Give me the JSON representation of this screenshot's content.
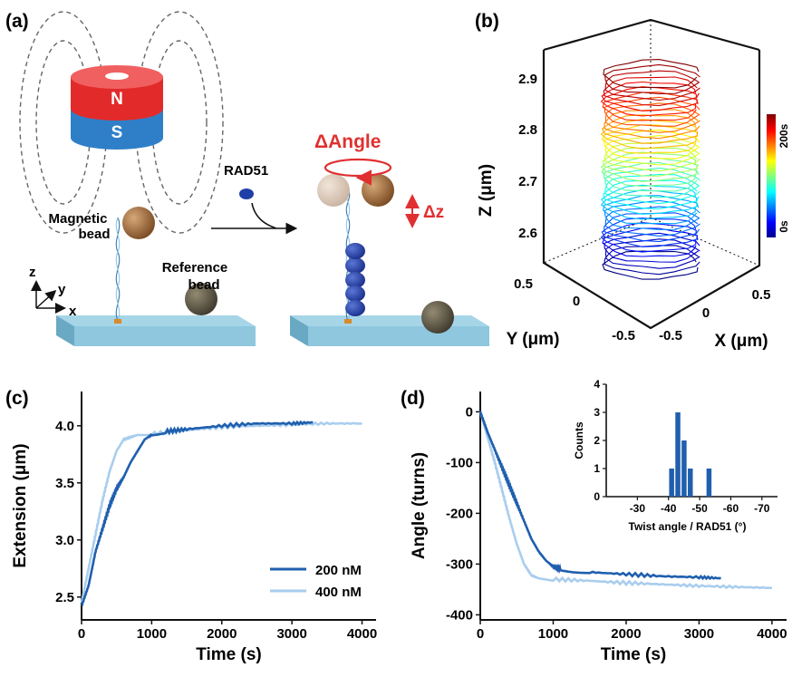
{
  "panels": {
    "a": {
      "label": "(a)",
      "magnet": {
        "north": "N",
        "south": "S"
      },
      "protein": "RAD51",
      "magnetic_bead": [
        "Magnetic",
        "bead"
      ],
      "reference_bead": [
        "Reference",
        "bead"
      ],
      "axes": {
        "z": "z",
        "y": "y",
        "x": "x"
      },
      "delta_angle": "ΔAngle",
      "delta_z": "Δz",
      "colors": {
        "magnet_north": "#e32a2a",
        "magnet_south": "#2f7fc8",
        "bead": "#9a6a3a",
        "reference_bead": "#5b5444",
        "rad51": "#1f3fa8",
        "surface": "#8ec7de",
        "annotation": "#e03030"
      }
    },
    "b": {
      "label": "(b)",
      "zlabel": "Z (μm)",
      "ylabel": "Y (μm)",
      "xlabel": "X (μm)",
      "zticks": [
        "2.9",
        "2.8",
        "2.7",
        "2.6"
      ],
      "yticks": [
        "0.5",
        "0",
        "-0.5"
      ],
      "xticks": [
        "-0.5",
        "0",
        "0.5"
      ],
      "colorbar": {
        "top": "200s",
        "bottom": "0s",
        "colormap": "jet"
      }
    },
    "c": {
      "label": "(c)"
    },
    "d": {
      "label": "(d)"
    }
  },
  "chart_data": [
    {
      "panel": "b",
      "type": "line",
      "description_3d": true,
      "x_range": [
        -0.5,
        0.5
      ],
      "y_range": [
        -0.5,
        0.5
      ],
      "z_range": [
        2.55,
        2.92
      ],
      "time_range_s": [
        0,
        200
      ],
      "color_by": "time"
    },
    {
      "panel": "c",
      "type": "line",
      "xlabel": "Time (s)",
      "ylabel": "Extension (μm)",
      "xlim": [
        0,
        4200
      ],
      "ylim": [
        2.3,
        4.3
      ],
      "xticks": [
        "0",
        "1000",
        "2000",
        "3000",
        "4000"
      ],
      "yticks": [
        "2.5",
        "3.0",
        "3.5",
        "4.0"
      ],
      "legend": "bottom-right",
      "series": [
        {
          "name": "200 nM",
          "color": "#1f5fae",
          "x": [
            0,
            100,
            200,
            300,
            400,
            500,
            600,
            700,
            800,
            900,
            1000,
            1200,
            1500,
            2000,
            2500,
            3000,
            3300
          ],
          "y": [
            2.42,
            2.6,
            2.9,
            3.1,
            3.3,
            3.45,
            3.55,
            3.68,
            3.78,
            3.88,
            3.92,
            3.95,
            3.97,
            4.0,
            4.02,
            4.02,
            4.03
          ]
        },
        {
          "name": "400 nM",
          "color": "#a9cdee",
          "x": [
            0,
            100,
            200,
            300,
            400,
            500,
            600,
            700,
            800,
            1000,
            1500,
            2000,
            2500,
            3000,
            3500,
            4000
          ],
          "y": [
            2.45,
            2.75,
            3.05,
            3.35,
            3.6,
            3.78,
            3.88,
            3.9,
            3.92,
            3.93,
            3.96,
            3.99,
            4.0,
            4.01,
            4.02,
            4.02
          ]
        }
      ]
    },
    {
      "panel": "d",
      "type": "line",
      "xlabel": "Time (s)",
      "ylabel": "Angle (turns)",
      "xlim": [
        0,
        4200
      ],
      "ylim": [
        -410,
        40
      ],
      "xticks": [
        "0",
        "1000",
        "2000",
        "3000",
        "4000"
      ],
      "yticks": [
        "0",
        "-100",
        "-200",
        "-300",
        "-400"
      ],
      "series": [
        {
          "name": "200 nM",
          "color": "#1f5fae",
          "x": [
            0,
            100,
            200,
            300,
            400,
            500,
            600,
            700,
            800,
            900,
            1000,
            1100,
            1500,
            2000,
            2500,
            3000,
            3300
          ],
          "y": [
            0,
            -40,
            -75,
            -110,
            -145,
            -180,
            -215,
            -250,
            -275,
            -293,
            -305,
            -310,
            -316,
            -320,
            -324,
            -326,
            -328
          ]
        },
        {
          "name": "400 nM",
          "color": "#a9cdee",
          "x": [
            0,
            100,
            200,
            300,
            400,
            500,
            600,
            700,
            800,
            1000,
            1500,
            2000,
            2500,
            3000,
            3500,
            4000
          ],
          "y": [
            0,
            -50,
            -100,
            -155,
            -210,
            -260,
            -300,
            -322,
            -328,
            -330,
            -333,
            -337,
            -340,
            -343,
            -345,
            -347
          ]
        }
      ]
    },
    {
      "panel": "d-inset",
      "type": "bar",
      "xlabel": "Twist angle / RAD51 (°)",
      "ylabel": "Counts",
      "xlim": [
        -20,
        -75
      ],
      "ylim": [
        0,
        4
      ],
      "xticks": [
        "-30",
        "-40",
        "-50",
        "-60",
        "-70"
      ],
      "yticks": [
        "0",
        "1",
        "2",
        "3",
        "4"
      ],
      "bin_centers": [
        -41,
        -43,
        -45,
        -47,
        -53
      ],
      "counts": [
        1,
        3,
        2,
        1,
        1
      ],
      "color": "#1f5fae"
    }
  ]
}
